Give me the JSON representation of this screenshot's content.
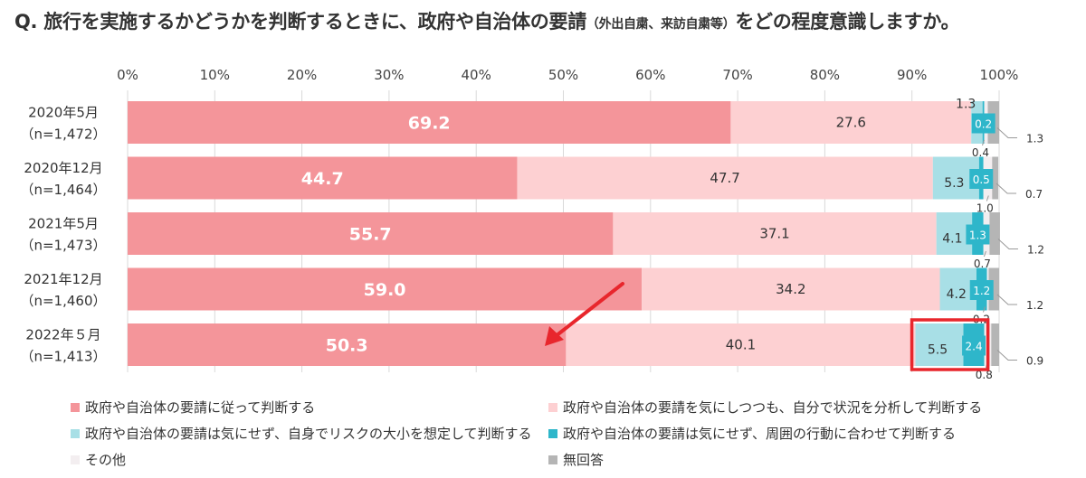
{
  "title": {
    "main": "Q.  旅行を実施するかどうかを判断するときに、政府や自治体の要請",
    "sub": "（外出自粛、来訪自粛等）",
    "tail": "をどの程度意識しますか。"
  },
  "chart_data": {
    "type": "bar",
    "orientation": "horizontal",
    "stacked": true,
    "x_ticks": [
      "0%",
      "10%",
      "20%",
      "30%",
      "40%",
      "50%",
      "60%",
      "70%",
      "80%",
      "90%",
      "100%"
    ],
    "xlim": [
      0,
      100
    ],
    "grid": true,
    "legend_position": "bottom",
    "categories": [
      {
        "label": "2020年5月",
        "n": "（n=1,472）"
      },
      {
        "label": "2020年12月",
        "n": "（n=1,464）"
      },
      {
        "label": "2021年5月",
        "n": "（n=1,473）"
      },
      {
        "label": "2021年12月",
        "n": "（n=1,460）"
      },
      {
        "label": "2022年５月",
        "n": "（n=1,413）"
      }
    ],
    "series": [
      {
        "name": "政府や自治体の要請に従って判断する",
        "color": "#f4959a",
        "values": [
          69.2,
          44.7,
          55.7,
          59.0,
          50.3
        ],
        "labels": [
          "69.2",
          "44.7",
          "55.7",
          "59.0",
          "50.3"
        ]
      },
      {
        "name": "政府や自治体の要請を気にしつつも、自分で状況を分析して判断する",
        "color": "#fdd0d2",
        "values": [
          27.6,
          47.7,
          37.1,
          34.2,
          40.1
        ],
        "labels": [
          "27.6",
          "47.7",
          "37.1",
          "34.2",
          "40.1"
        ]
      },
      {
        "name": "政府や自治体の要請は気にせず、自身でリスクの大小を想定して判断する",
        "color": "#a8dfe6",
        "values": [
          1.3,
          5.3,
          4.1,
          4.2,
          5.5
        ],
        "labels": [
          "1.3",
          "5.3",
          "4.1",
          "4.2",
          "5.5"
        ]
      },
      {
        "name": "政府や自治体の要請は気にせず、周囲の行動に合わせて判断する",
        "color": "#2eb6ca",
        "values": [
          0.2,
          0.5,
          1.3,
          1.2,
          2.4
        ],
        "labels": [
          "0.2",
          "0.5",
          "1.3",
          "1.2",
          "2.4"
        ]
      },
      {
        "name": "その他",
        "color": "#f3eef0",
        "values": [
          0.4,
          1.0,
          0.7,
          0.2,
          0.8
        ],
        "labels": [
          "0.4",
          "1.0",
          "0.7",
          "0.2",
          "0.8"
        ]
      },
      {
        "name": "無回答",
        "color": "#b5b5b5",
        "values": [
          1.3,
          0.7,
          1.2,
          1.2,
          0.9
        ],
        "labels": [
          "1.3",
          "0.7",
          "1.2",
          "1.2",
          "0.9"
        ]
      }
    ],
    "annotations": {
      "highlight_box_category": "2022年５月",
      "highlight_color": "#e8262c",
      "arrow_color": "#e8262c"
    }
  }
}
